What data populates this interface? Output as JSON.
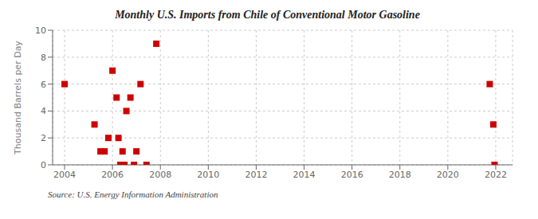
{
  "chart_data": {
    "type": "scatter",
    "title": "Monthly U.S. Imports from Chile of Conventional Motor Gasoline",
    "y_label": "Thousand Barrels per Day",
    "annotations": [
      "Source: U.S. Energy Information Administration"
    ],
    "x": [
      2004.0,
      2005.25,
      2005.5,
      2005.67,
      2005.83,
      2006.0,
      2006.17,
      2006.25,
      2006.33,
      2006.42,
      2006.5,
      2006.58,
      2006.75,
      2006.9,
      2007.0,
      2007.17,
      2007.42,
      2007.83,
      2021.75,
      2021.9,
      2021.95
    ],
    "values": [
      6,
      3,
      1,
      1,
      2,
      7,
      5,
      2,
      0,
      1,
      0,
      4,
      5,
      0,
      1,
      6,
      0,
      9,
      6,
      3,
      0
    ],
    "color": "#cc0000",
    "marker": "square",
    "xlim": [
      2003.5,
      2022.7
    ],
    "ylim": [
      0,
      10
    ],
    "xticks": [
      2004,
      2006,
      2008,
      2010,
      2012,
      2014,
      2016,
      2018,
      2020,
      2022
    ],
    "yticks": [
      0,
      2,
      4,
      6,
      8,
      10
    ],
    "grid": true
  }
}
